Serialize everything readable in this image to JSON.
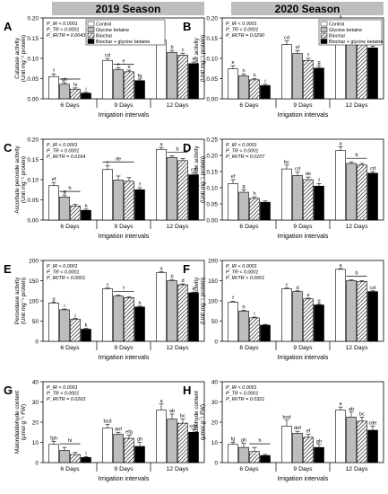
{
  "seasons": [
    "2019 Season",
    "2020 Season"
  ],
  "legend": [
    "Control",
    "Glycine betaine",
    "Biochar",
    "Biochar + glycine betaine"
  ],
  "fills": [
    "#ffffff",
    "#bdbdbd",
    "hatch",
    "#000000"
  ],
  "chart_data": [
    {
      "type": "bar",
      "panel": "A",
      "title": "",
      "xlabel": "Irrigation intervals",
      "ylabel": "Catalase activity (Unit mg⁻¹ protein)",
      "categories": [
        "6 Days",
        "9 Days",
        "12 Days"
      ],
      "ylim": [
        0,
        0.2
      ],
      "yticks": [
        0.0,
        0.05,
        0.1,
        0.15,
        0.2
      ],
      "tick_labels": [
        "0.00",
        "0.05",
        "0.10",
        "0.15",
        "0.20"
      ],
      "stats": [
        "P_IR < 0.0001",
        "P_TR < 0.0001",
        "P_IR/TR = 0.0043"
      ],
      "series": [
        {
          "name": "Control",
          "values": [
            0.055,
            0.095,
            0.145
          ],
          "errors": [
            0.006,
            0.005,
            0.006
          ],
          "letters": [
            "f",
            "cd",
            "a"
          ]
        },
        {
          "name": "Glycine betaine",
          "values": [
            0.036,
            0.072,
            0.115
          ],
          "errors": [
            0.004,
            0.005,
            0.005
          ],
          "letters": [
            "gh",
            "e",
            "b"
          ]
        },
        {
          "name": "Biochar",
          "values": [
            0.024,
            0.067,
            0.108
          ],
          "errors": [
            0.003,
            0.004,
            0.005
          ],
          "letters": [
            "hi",
            "e",
            "c"
          ]
        },
        {
          "name": "Biochar + glycine betaine",
          "values": [
            0.014,
            0.045,
            0.087
          ],
          "errors": [
            0.002,
            0.004,
            0.004
          ],
          "letters": [
            "i",
            "fg",
            "d"
          ]
        }
      ],
      "brackets": [
        {
          "group": 0,
          "from": 1,
          "to": 2,
          "label": ""
        },
        {
          "group": 1,
          "from": 1,
          "to": 2,
          "label": "e"
        }
      ]
    },
    {
      "type": "bar",
      "panel": "B",
      "title": "",
      "xlabel": "Irrigation intervals",
      "ylabel": "Catalase activity (Unit mg⁻¹ protein)",
      "categories": [
        "6 Days",
        "9 Days",
        "12 Days"
      ],
      "ylim": [
        0,
        0.2
      ],
      "yticks": [
        0.0,
        0.05,
        0.1,
        0.15,
        0.2
      ],
      "tick_labels": [
        "0.00",
        "0.05",
        "0.10",
        "0.15",
        "0.20"
      ],
      "stats": [
        "P_IR < 0.0001",
        "P_TR < 0.0001",
        "P_IR/TR = 0.0290"
      ],
      "series": [
        {
          "name": "Control",
          "values": [
            0.074,
            0.134,
            0.188
          ],
          "errors": [
            0.008,
            0.009,
            0.006
          ],
          "letters": [
            "e",
            "cd",
            "a"
          ]
        },
        {
          "name": "Glycine betaine",
          "values": [
            0.057,
            0.112,
            0.165
          ],
          "errors": [
            0.004,
            0.007,
            0.006
          ],
          "letters": [
            "h",
            "ef",
            "b"
          ]
        },
        {
          "name": "Biochar",
          "values": [
            0.047,
            0.095,
            0.146
          ],
          "errors": [
            0.003,
            0.005,
            0.005
          ],
          "letters": [
            "h",
            "f",
            "bc"
          ]
        },
        {
          "name": "Biochar + glycine betaine",
          "values": [
            0.033,
            0.076,
            0.126
          ],
          "errors": [
            0.003,
            0.006,
            0.004
          ],
          "letters": [
            "i",
            "g",
            "de"
          ]
        }
      ],
      "brackets": []
    },
    {
      "type": "bar",
      "panel": "C",
      "title": "",
      "xlabel": "Irrigation intervals",
      "ylabel": "Ascorbate peroxide activity (Unit mg⁻¹ protein)",
      "categories": [
        "6 Days",
        "9 Days",
        "12 Days"
      ],
      "ylim": [
        0,
        0.2
      ],
      "yticks": [
        0.0,
        0.05,
        0.1,
        0.15,
        0.2
      ],
      "tick_labels": [
        "0.00",
        "0.05",
        "0.10",
        "0.15",
        "0.20"
      ],
      "stats": [
        "P_IR < 0.0001",
        "P_TR < 0.0001",
        "P_IR/TR = 0.0164"
      ],
      "series": [
        {
          "name": "Control",
          "values": [
            0.085,
            0.125,
            0.175
          ],
          "errors": [
            0.008,
            0.01,
            0.005
          ],
          "letters": [
            "ef",
            "c",
            "a"
          ]
        },
        {
          "name": "Glycine betaine",
          "values": [
            0.057,
            0.099,
            0.155
          ],
          "errors": [
            0.005,
            0.01,
            0.004
          ],
          "letters": [
            "g",
            "",
            ""
          ]
        },
        {
          "name": "Biochar",
          "values": [
            0.035,
            0.096,
            0.147
          ],
          "errors": [
            0.004,
            0.009,
            0.005
          ],
          "letters": [
            "",
            "",
            ""
          ]
        },
        {
          "name": "Biochar + glycine betaine",
          "values": [
            0.024,
            0.075,
            0.112
          ],
          "errors": [
            0.003,
            0.005,
            0.005
          ],
          "letters": [
            "h",
            "f",
            "cd"
          ]
        }
      ],
      "brackets": [
        {
          "group": 0,
          "from": 1,
          "to": 2,
          "label": "h"
        },
        {
          "group": 1,
          "from": 0,
          "to": 2,
          "label": "de"
        },
        {
          "group": 2,
          "from": 1,
          "to": 2,
          "label": "b"
        }
      ]
    },
    {
      "type": "bar",
      "panel": "D",
      "title": "",
      "xlabel": "Irrigation intervals",
      "ylabel": "Ascorbate peroxide activity (Unit mg⁻¹ protein)",
      "categories": [
        "6 Days",
        "9 Days",
        "12 Days"
      ],
      "ylim": [
        0,
        0.25
      ],
      "yticks": [
        0.0,
        0.05,
        0.1,
        0.15,
        0.2,
        0.25
      ],
      "tick_labels": [
        "0.00",
        "0.05",
        "0.10",
        "0.15",
        "0.20",
        "0.25"
      ],
      "stats": [
        "P_IR < 0.0001",
        "P_TR < 0.0001",
        "P_IR/TR = 0.0107"
      ],
      "series": [
        {
          "name": "Control",
          "values": [
            0.113,
            0.158,
            0.215
          ],
          "errors": [
            0.012,
            0.012,
            0.012
          ],
          "letters": [
            "ef",
            "bc",
            "a"
          ]
        },
        {
          "name": "Glycine betaine",
          "values": [
            0.086,
            0.138,
            0.175
          ],
          "errors": [
            0.008,
            0.01,
            0.005
          ],
          "letters": [
            "g",
            "cd",
            ""
          ]
        },
        {
          "name": "Biochar",
          "values": [
            0.067,
            0.125,
            0.17
          ],
          "errors": [
            0.005,
            0.008,
            0.005
          ],
          "letters": [
            "h",
            "de",
            ""
          ]
        },
        {
          "name": "Biochar + glycine betaine",
          "values": [
            0.055,
            0.105,
            0.145
          ],
          "errors": [
            0.004,
            0.008,
            0.005
          ],
          "letters": [
            "",
            "f",
            "cd"
          ]
        }
      ],
      "brackets": [
        {
          "group": 2,
          "from": 1,
          "to": 2,
          "label": "b"
        }
      ]
    },
    {
      "type": "bar",
      "panel": "E",
      "title": "",
      "xlabel": "Irrigation intervals",
      "ylabel": "Peroxidase activity (Unit mg⁻¹ protein)",
      "categories": [
        "6 Days",
        "9 Days",
        "12 Days"
      ],
      "ylim": [
        0,
        200
      ],
      "yticks": [
        0,
        50,
        100,
        150,
        200
      ],
      "tick_labels": [
        "0",
        "50",
        "100",
        "150",
        "200"
      ],
      "stats": [
        "P_IR < 0.0001",
        "P_TR < 0.0001",
        "P_IR/TR < 0.0001"
      ],
      "series": [
        {
          "name": "Control",
          "values": [
            95,
            130,
            170
          ],
          "errors": [
            2,
            2,
            2
          ],
          "letters": [
            "g",
            "c",
            "a"
          ]
        },
        {
          "name": "Glycine betaine",
          "values": [
            78,
            112,
            150
          ],
          "errors": [
            2,
            2,
            2
          ],
          "letters": [
            "i",
            "",
            "b"
          ]
        },
        {
          "name": "Biochar",
          "values": [
            55,
            108,
            140
          ],
          "errors": [
            2,
            2,
            2
          ],
          "letters": [
            "j",
            "",
            "d"
          ]
        },
        {
          "name": "Biochar + glycine betaine",
          "values": [
            30,
            85,
            120
          ],
          "errors": [
            2,
            2,
            2
          ],
          "letters": [
            "k",
            "h",
            "e"
          ]
        }
      ],
      "brackets": [
        {
          "group": 1,
          "from": 1,
          "to": 2,
          "label": "f"
        }
      ]
    },
    {
      "type": "bar",
      "panel": "F",
      "title": "",
      "xlabel": "Irrigation intervals",
      "ylabel": "Peroxidase activity (Unit mg⁻¹ protein)",
      "categories": [
        "6 Days",
        "9 Days",
        "12 Days"
      ],
      "ylim": [
        0,
        200
      ],
      "yticks": [
        0,
        50,
        100,
        150,
        200
      ],
      "tick_labels": [
        "0",
        "50",
        "100",
        "150",
        "200"
      ],
      "stats": [
        "P_IR < 0.0001",
        "P_TR < 0.0001",
        "P_IR/TR < 0.0001"
      ],
      "series": [
        {
          "name": "Control",
          "values": [
            97,
            130,
            178
          ],
          "errors": [
            2,
            2,
            2
          ],
          "letters": [
            "f",
            "c",
            "a"
          ]
        },
        {
          "name": "Glycine betaine",
          "values": [
            75,
            123,
            150
          ],
          "errors": [
            2,
            2,
            2
          ],
          "letters": [
            "h",
            "d",
            ""
          ]
        },
        {
          "name": "Biochar",
          "values": [
            58,
            105,
            148
          ],
          "errors": [
            2,
            2,
            2
          ],
          "letters": [
            "i",
            "e",
            ""
          ]
        },
        {
          "name": "Biochar + glycine betaine",
          "values": [
            40,
            90,
            123
          ],
          "errors": [
            2,
            2,
            2
          ],
          "letters": [
            "",
            "g",
            "cd"
          ]
        }
      ],
      "brackets": [
        {
          "group": 2,
          "from": 1,
          "to": 2,
          "label": "b"
        }
      ]
    },
    {
      "type": "bar",
      "panel": "G",
      "title": "",
      "xlabel": "Irrigation intervals",
      "ylabel": "Malondialdehyde content (μmol g⁻¹ FW)",
      "categories": [
        "6 Days",
        "9 Days",
        "12 Days"
      ],
      "ylim": [
        0,
        40
      ],
      "yticks": [
        0,
        10,
        20,
        30,
        40
      ],
      "tick_labels": [
        "0",
        "10",
        "20",
        "30",
        "40"
      ],
      "stats": [
        "P_IR < 0.0001",
        "P_TR < 0.0001",
        "P_IR/TR = 0.0263"
      ],
      "series": [
        {
          "name": "Control",
          "values": [
            9,
            17,
            26
          ],
          "errors": [
            1.5,
            2,
            3
          ],
          "letters": [
            "fgh",
            "bcd",
            "a"
          ]
        },
        {
          "name": "Glycine betaine",
          "values": [
            6,
            14,
            21.5
          ],
          "errors": [
            1.5,
            1,
            2.5
          ],
          "letters": [
            "",
            "def",
            "ab"
          ]
        },
        {
          "name": "Biochar",
          "values": [
            4,
            12,
            19.5
          ],
          "errors": [
            1,
            1.5,
            2
          ],
          "letters": [
            "",
            "efg",
            "bc"
          ]
        },
        {
          "name": "Biochar + glycine betaine",
          "values": [
            2.5,
            8,
            15
          ],
          "errors": [
            0.5,
            2,
            1.5
          ],
          "letters": [
            "i",
            "gh",
            "cde"
          ]
        }
      ],
      "brackets": [
        {
          "group": 0,
          "from": 1,
          "to": 2,
          "label": "hi"
        }
      ]
    },
    {
      "type": "bar",
      "panel": "H",
      "title": "",
      "xlabel": "Irrigation intervals",
      "ylabel": "Malondialdehyde content (μmol g⁻¹ FW)",
      "categories": [
        "6 Days",
        "9 Days",
        "12 Days"
      ],
      "ylim": [
        0,
        40
      ],
      "yticks": [
        0,
        10,
        20,
        30,
        40
      ],
      "tick_labels": [
        "0",
        "10",
        "20",
        "30",
        "40"
      ],
      "stats": [
        "P_IR < 0.0001",
        "P_TR < 0.0001",
        "P_IR/TR = 0.0321"
      ],
      "series": [
        {
          "name": "Control",
          "values": [
            9,
            18,
            26
          ],
          "errors": [
            1,
            3,
            1.5
          ],
          "letters": [
            "fg",
            "bcd",
            "a"
          ]
        },
        {
          "name": "Glycine betaine",
          "values": [
            7.5,
            14.5,
            22.5
          ],
          "errors": [
            2,
            1,
            2.5
          ],
          "letters": [
            "gh",
            "def",
            "ab"
          ]
        },
        {
          "name": "Biochar",
          "values": [
            5.5,
            12.5,
            20.5
          ],
          "errors": [
            2,
            1.5,
            2
          ],
          "letters": [
            "",
            "ef",
            "bc"
          ]
        },
        {
          "name": "Biochar + glycine betaine",
          "values": [
            3.5,
            7.5,
            16
          ],
          "errors": [
            0.5,
            1.5,
            2
          ],
          "letters": [
            "",
            "gh",
            "cde"
          ]
        }
      ],
      "brackets": [
        {
          "group": 0,
          "from": 2,
          "to": 3,
          "label": "h"
        }
      ]
    }
  ]
}
